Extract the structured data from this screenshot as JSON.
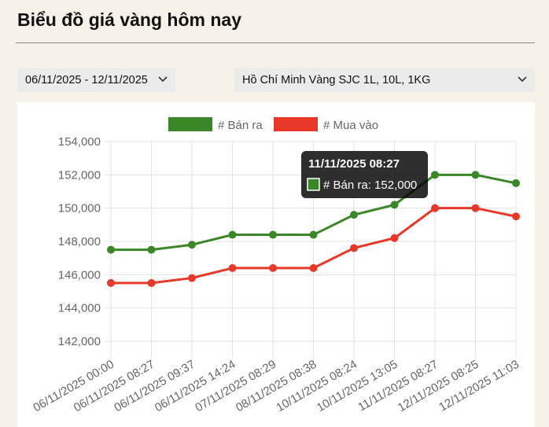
{
  "header": {
    "title": "Biểu đồ giá vàng hôm nay"
  },
  "filters": {
    "date_range": "06/11/2025 - 12/11/2025",
    "product": "Hồ Chí Minh Vàng SJC 1L, 10L, 1KG"
  },
  "chart_data": {
    "type": "line",
    "categories": [
      "06/11/2025 00:00",
      "06/11/2025 08:27",
      "06/11/2025 09:37",
      "06/11/2025 14:24",
      "07/11/2025 08:29",
      "08/11/2025 08:38",
      "10/11/2025 08:24",
      "10/11/2025 13:05",
      "11/11/2025 08:27",
      "12/11/2025 08:25",
      "12/11/2025 11:03"
    ],
    "series": [
      {
        "name": "# Bán ra",
        "color": "#3a8727",
        "values": [
          147500,
          147500,
          147800,
          148400,
          148400,
          148400,
          149600,
          150200,
          152000,
          152000,
          151500
        ]
      },
      {
        "name": "# Mua vào",
        "color": "#e8382a",
        "values": [
          145500,
          145500,
          145800,
          146400,
          146400,
          146400,
          147600,
          148200,
          150000,
          150000,
          149500
        ]
      }
    ],
    "ylim": [
      142000,
      154000
    ],
    "yticks": [
      {
        "value": 142000,
        "label": "142,000"
      },
      {
        "value": 144000,
        "label": "144,000"
      },
      {
        "value": 146000,
        "label": "146,000"
      },
      {
        "value": 148000,
        "label": "148,000"
      },
      {
        "value": 150000,
        "label": "150,000"
      },
      {
        "value": 152000,
        "label": "152,000"
      },
      {
        "value": 154000,
        "label": "154,000"
      }
    ],
    "grid": true,
    "legend": "top",
    "tooltip": {
      "title": "11/11/2025 08:27",
      "text": "# Bán ra: 152,000"
    }
  }
}
